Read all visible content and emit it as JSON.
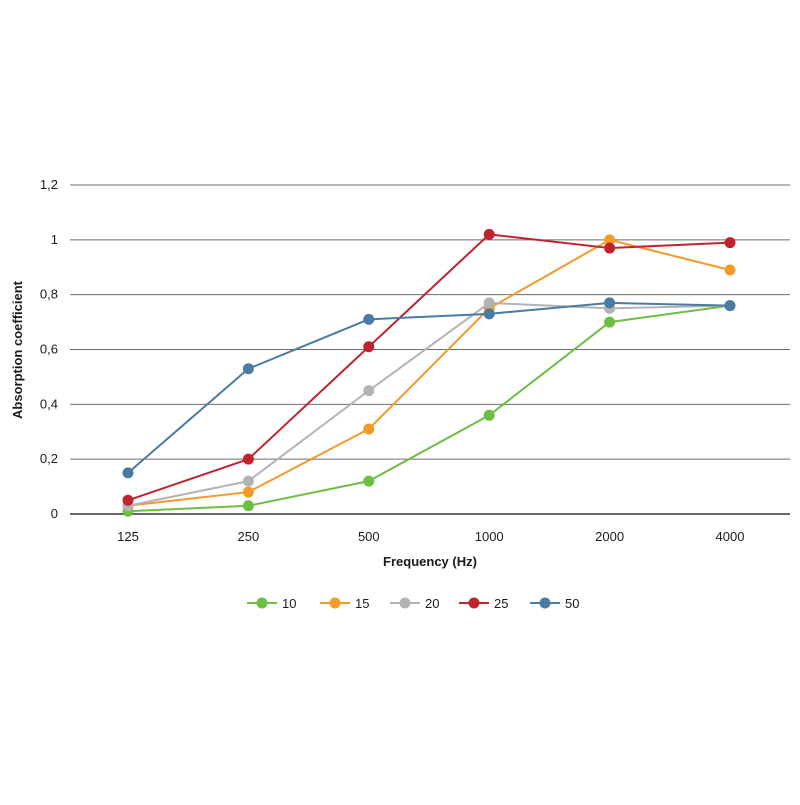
{
  "chart_data": {
    "type": "line",
    "title": "",
    "xlabel": "Frequency (Hz)",
    "ylabel": "Absorption coefficient",
    "categories": [
      "125",
      "250",
      "500",
      "1000",
      "2000",
      "4000"
    ],
    "ylim": [
      0,
      1.2
    ],
    "yticks": [
      {
        "value": 0,
        "label": "0"
      },
      {
        "value": 0.2,
        "label": "0,2"
      },
      {
        "value": 0.4,
        "label": "0,4"
      },
      {
        "value": 0.6,
        "label": "0,6"
      },
      {
        "value": 0.8,
        "label": "0,8"
      },
      {
        "value": 1.0,
        "label": "1"
      },
      {
        "value": 1.2,
        "label": "1,2"
      }
    ],
    "grid": true,
    "legend_position": "bottom",
    "series": [
      {
        "name": "10",
        "color": "#6dbf44",
        "values": [
          0.01,
          0.03,
          0.12,
          0.36,
          0.7,
          0.76
        ]
      },
      {
        "name": "15",
        "color": "#f39a2c",
        "values": [
          0.03,
          0.08,
          0.31,
          0.75,
          1.0,
          0.89
        ]
      },
      {
        "name": "20",
        "color": "#b3b3b3",
        "values": [
          0.03,
          0.12,
          0.45,
          0.77,
          0.75,
          0.76
        ]
      },
      {
        "name": "25",
        "color": "#c0232f",
        "values": [
          0.05,
          0.2,
          0.61,
          1.02,
          0.97,
          0.99
        ]
      },
      {
        "name": "50",
        "color": "#4a7ba5",
        "values": [
          0.15,
          0.53,
          0.71,
          0.73,
          0.77,
          0.76
        ]
      }
    ]
  }
}
